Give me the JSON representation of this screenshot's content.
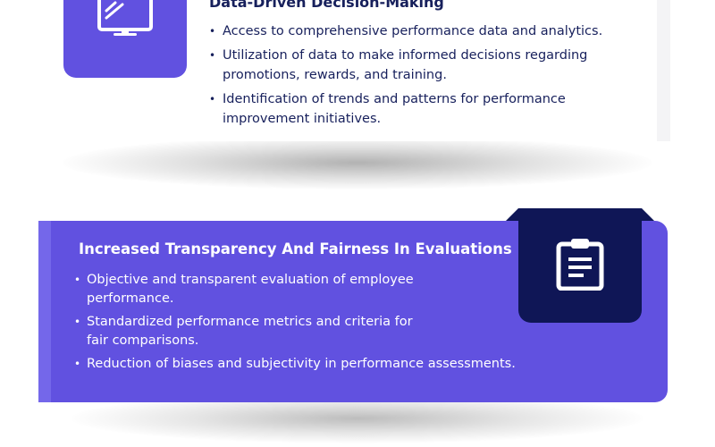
{
  "sections": [
    {
      "title": "Data-Driven Decision-Making",
      "icon": "monitor-icon",
      "bullets": [
        "Access to comprehensive performance data and analytics.",
        "Utilization of data to make informed decisions regarding promotions, rewards, and training.",
        "Identification of trends and patterns for performance improvement initiatives."
      ]
    },
    {
      "title": "Increased Transparency And Fairness In Evaluations",
      "icon": "clipboard-icon",
      "bullets": [
        "Objective and transparent evaluation of employee performance.",
        "Standardized performance metrics and criteria for fair comparisons.",
        "Reduction of biases and subjectivity in performance assessments."
      ]
    }
  ],
  "colors": {
    "accent": "#6151e0",
    "navy": "#0f1656",
    "text_dark": "#17205c",
    "text_light": "#ffffff"
  }
}
